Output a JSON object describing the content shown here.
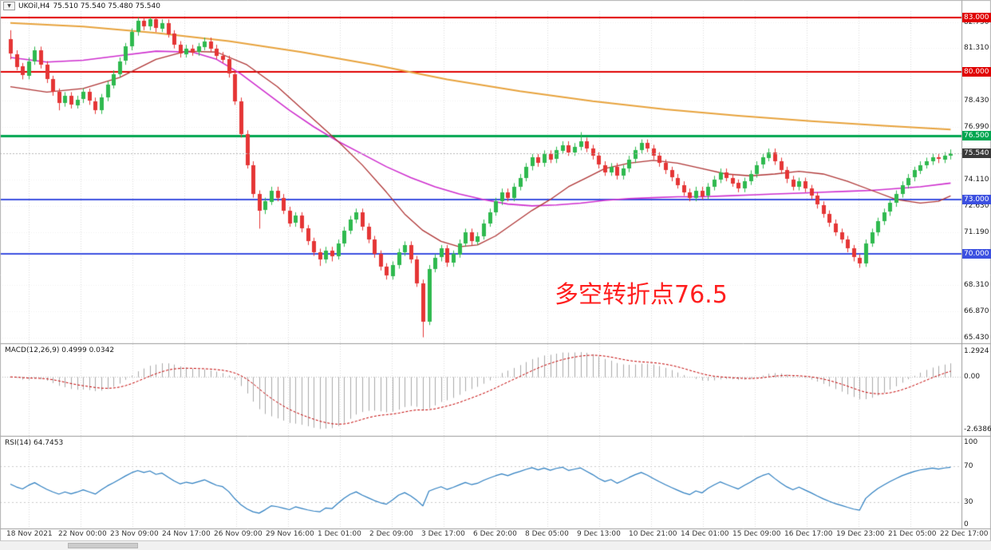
{
  "symbol_bar": {
    "dropdown_icon": "▼",
    "label": "UKOil,H4",
    "ohlc": "75.510 75.540 75.480 75.540"
  },
  "annotation": {
    "text": "多空转折点76.5",
    "color": "#ff1f1f"
  },
  "chart_data": {
    "type": "candlestick",
    "symbol": "UKOil",
    "timeframe": "H4",
    "current_ohlc": {
      "open": "75.510",
      "high": "75.540",
      "low": "75.480",
      "close": "75.540"
    },
    "price_ticks": [
      "82.750",
      "81.310",
      "78.430",
      "76.990",
      "74.110",
      "72.630",
      "71.190",
      "68.310",
      "66.870",
      "65.430"
    ],
    "time_labels": [
      "18 Nov 2021",
      "22 Nov 00:00",
      "23 Nov 09:00",
      "24 Nov 17:00",
      "26 Nov 09:00",
      "29 Nov 16:00",
      "1 Dec 01:00",
      "2 Dec 09:00",
      "3 Dec 17:00",
      "6 Dec 20:00",
      "8 Dec 05:00",
      "9 Dec 13:00",
      "10 Dec 21:00",
      "14 Dec 01:00",
      "15 Dec 09:00",
      "16 Dec 17:00",
      "19 Dec 23:00",
      "21 Dec 05:00",
      "22 Dec 17:00"
    ],
    "horizontal_lines": [
      {
        "label": "83.000",
        "price": 83.0,
        "color": "#e00000",
        "width": 2
      },
      {
        "label": "80.000",
        "price": 80.0,
        "color": "#e00000",
        "width": 2
      },
      {
        "label": "76.500",
        "price": 76.5,
        "color": "#00a650",
        "width": 3
      },
      {
        "label": "73.000",
        "price": 73.0,
        "color": "#3c50e0",
        "width": 2
      },
      {
        "label": "70.000",
        "price": 70.0,
        "color": "#3c50e0",
        "width": 2
      }
    ],
    "current_price": {
      "value": 75.54,
      "label": "75.540",
      "badge_color": "#3a3a3a",
      "line_color": "#b8b8b8"
    },
    "candle_colors": {
      "up": "#2eb94e",
      "down": "#e53535"
    },
    "candles": [
      [
        81.8,
        82.3,
        80.7,
        81.0
      ],
      [
        81.0,
        81.2,
        80.1,
        80.3
      ],
      [
        80.3,
        80.5,
        79.6,
        79.8
      ],
      [
        79.8,
        80.8,
        79.6,
        80.6
      ],
      [
        80.6,
        81.4,
        80.4,
        81.2
      ],
      [
        81.2,
        81.4,
        80.2,
        80.4
      ],
      [
        80.4,
        80.6,
        79.4,
        79.6
      ],
      [
        79.6,
        79.8,
        78.7,
        78.9
      ],
      [
        78.9,
        79.1,
        77.9,
        78.3
      ],
      [
        78.3,
        78.9,
        78.1,
        78.7
      ],
      [
        78.7,
        78.9,
        78.0,
        78.2
      ],
      [
        78.2,
        78.7,
        78.0,
        78.5
      ],
      [
        78.5,
        79.1,
        78.3,
        78.9
      ],
      [
        78.9,
        79.1,
        78.2,
        78.4
      ],
      [
        78.4,
        78.6,
        77.7,
        77.9
      ],
      [
        77.9,
        78.8,
        77.7,
        78.6
      ],
      [
        78.6,
        79.5,
        78.4,
        79.3
      ],
      [
        79.3,
        80.1,
        79.1,
        79.9
      ],
      [
        79.9,
        80.8,
        79.7,
        80.6
      ],
      [
        80.6,
        81.6,
        80.4,
        81.4
      ],
      [
        81.4,
        82.4,
        81.2,
        82.2
      ],
      [
        82.2,
        83.0,
        82.0,
        82.8
      ],
      [
        82.8,
        83.0,
        82.3,
        82.5
      ],
      [
        82.5,
        83.0,
        82.3,
        82.9
      ],
      [
        82.9,
        83.0,
        82.2,
        82.4
      ],
      [
        82.4,
        82.9,
        82.2,
        82.7
      ],
      [
        82.7,
        82.9,
        81.9,
        82.1
      ],
      [
        82.1,
        82.3,
        81.3,
        81.5
      ],
      [
        81.5,
        81.7,
        80.8,
        81.0
      ],
      [
        81.0,
        81.5,
        80.8,
        81.3
      ],
      [
        81.3,
        81.5,
        80.9,
        81.1
      ],
      [
        81.1,
        81.6,
        80.9,
        81.4
      ],
      [
        81.4,
        81.9,
        81.2,
        81.7
      ],
      [
        81.7,
        81.9,
        81.1,
        81.3
      ],
      [
        81.3,
        81.5,
        80.7,
        80.9
      ],
      [
        80.9,
        81.1,
        80.5,
        80.7
      ],
      [
        80.7,
        80.9,
        79.7,
        79.9
      ],
      [
        79.9,
        80.1,
        78.2,
        78.4
      ],
      [
        78.4,
        78.6,
        76.4,
        76.6
      ],
      [
        76.6,
        76.8,
        74.7,
        74.9
      ],
      [
        74.9,
        75.1,
        73.1,
        73.3
      ],
      [
        73.3,
        73.5,
        71.4,
        72.4
      ],
      [
        72.4,
        73.1,
        72.2,
        72.9
      ],
      [
        72.9,
        73.7,
        72.7,
        73.5
      ],
      [
        73.5,
        73.7,
        72.9,
        73.1
      ],
      [
        73.1,
        73.3,
        72.2,
        72.4
      ],
      [
        72.4,
        72.6,
        71.5,
        71.7
      ],
      [
        71.7,
        72.3,
        71.5,
        72.1
      ],
      [
        72.1,
        72.3,
        71.2,
        71.4
      ],
      [
        71.4,
        71.6,
        70.5,
        70.7
      ],
      [
        70.7,
        70.9,
        69.9,
        70.1
      ],
      [
        70.1,
        70.3,
        69.35,
        69.7
      ],
      [
        69.7,
        70.4,
        69.5,
        70.2
      ],
      [
        70.2,
        70.4,
        69.6,
        69.9
      ],
      [
        69.9,
        70.8,
        69.7,
        70.6
      ],
      [
        70.6,
        71.5,
        70.4,
        71.3
      ],
      [
        71.3,
        72.1,
        71.1,
        71.9
      ],
      [
        71.9,
        72.5,
        71.7,
        72.3
      ],
      [
        72.3,
        72.5,
        71.3,
        71.5
      ],
      [
        71.5,
        71.7,
        70.6,
        70.8
      ],
      [
        70.8,
        71.0,
        69.8,
        70.0
      ],
      [
        70.0,
        70.2,
        69.1,
        69.3
      ],
      [
        69.3,
        69.5,
        68.6,
        68.8
      ],
      [
        68.8,
        69.6,
        68.6,
        69.4
      ],
      [
        69.4,
        70.3,
        69.2,
        70.1
      ],
      [
        70.1,
        70.7,
        69.9,
        70.5
      ],
      [
        70.5,
        70.7,
        69.5,
        69.7
      ],
      [
        69.7,
        69.9,
        68.2,
        68.4
      ],
      [
        68.4,
        68.6,
        65.43,
        66.3
      ],
      [
        66.3,
        69.4,
        66.1,
        69.2
      ],
      [
        69.2,
        70.0,
        69.0,
        69.8
      ],
      [
        69.8,
        70.5,
        69.6,
        70.3
      ],
      [
        70.3,
        70.5,
        69.3,
        69.5
      ],
      [
        69.5,
        70.2,
        69.3,
        70.0
      ],
      [
        70.0,
        70.8,
        69.8,
        70.6
      ],
      [
        70.6,
        71.4,
        70.4,
        71.2
      ],
      [
        71.2,
        71.4,
        70.5,
        70.7
      ],
      [
        70.7,
        71.2,
        70.5,
        71.0
      ],
      [
        71.0,
        71.9,
        70.8,
        71.7
      ],
      [
        71.7,
        72.5,
        71.5,
        72.3
      ],
      [
        72.3,
        73.1,
        72.1,
        72.9
      ],
      [
        72.9,
        73.6,
        72.7,
        73.4
      ],
      [
        73.4,
        73.6,
        72.9,
        73.1
      ],
      [
        73.1,
        73.9,
        72.9,
        73.7
      ],
      [
        73.7,
        74.4,
        73.5,
        74.2
      ],
      [
        74.2,
        75.0,
        74.0,
        74.8
      ],
      [
        74.8,
        75.5,
        74.6,
        75.3
      ],
      [
        75.3,
        75.5,
        74.8,
        75.0
      ],
      [
        75.0,
        75.7,
        74.8,
        75.5
      ],
      [
        75.5,
        75.7,
        75.0,
        75.2
      ],
      [
        75.2,
        75.9,
        75.0,
        75.7
      ],
      [
        75.7,
        76.2,
        75.5,
        76.0
      ],
      [
        76.0,
        76.2,
        75.4,
        75.6
      ],
      [
        75.6,
        76.1,
        75.4,
        75.9
      ],
      [
        75.9,
        76.7,
        75.7,
        76.2
      ],
      [
        76.2,
        76.4,
        75.6,
        75.8
      ],
      [
        75.8,
        76.0,
        75.2,
        75.4
      ],
      [
        75.4,
        75.6,
        74.7,
        74.9
      ],
      [
        74.9,
        75.1,
        74.3,
        74.5
      ],
      [
        74.5,
        75.0,
        74.3,
        74.8
      ],
      [
        74.8,
        75.0,
        74.1,
        74.3
      ],
      [
        74.3,
        74.9,
        74.1,
        74.7
      ],
      [
        74.7,
        75.4,
        74.5,
        75.2
      ],
      [
        75.2,
        75.9,
        75.0,
        75.7
      ],
      [
        75.7,
        76.3,
        75.5,
        76.1
      ],
      [
        76.1,
        76.3,
        75.6,
        75.8
      ],
      [
        75.8,
        76.0,
        75.2,
        75.4
      ],
      [
        75.4,
        75.6,
        74.8,
        75.0
      ],
      [
        75.0,
        75.2,
        74.4,
        74.6
      ],
      [
        74.6,
        74.8,
        74.0,
        74.2
      ],
      [
        74.2,
        74.4,
        73.6,
        73.8
      ],
      [
        73.8,
        74.0,
        73.2,
        73.4
      ],
      [
        73.4,
        73.6,
        72.9,
        73.1
      ],
      [
        73.1,
        73.7,
        72.9,
        73.5
      ],
      [
        73.5,
        73.7,
        73.0,
        73.2
      ],
      [
        73.2,
        73.9,
        73.0,
        73.7
      ],
      [
        73.7,
        74.3,
        73.5,
        74.1
      ],
      [
        74.1,
        74.7,
        73.9,
        74.5
      ],
      [
        74.5,
        74.7,
        74.0,
        74.2
      ],
      [
        74.2,
        74.4,
        73.7,
        73.9
      ],
      [
        73.9,
        74.1,
        73.4,
        73.6
      ],
      [
        73.6,
        74.2,
        73.4,
        74.0
      ],
      [
        74.0,
        74.6,
        73.8,
        74.4
      ],
      [
        74.4,
        75.1,
        74.2,
        74.9
      ],
      [
        74.9,
        75.5,
        74.7,
        75.3
      ],
      [
        75.3,
        75.8,
        75.1,
        75.6
      ],
      [
        75.6,
        75.8,
        74.9,
        75.1
      ],
      [
        75.1,
        75.3,
        74.4,
        74.6
      ],
      [
        74.6,
        74.8,
        73.9,
        74.1
      ],
      [
        74.1,
        74.3,
        73.5,
        73.7
      ],
      [
        73.7,
        74.2,
        73.5,
        74.0
      ],
      [
        74.0,
        74.2,
        73.4,
        73.6
      ],
      [
        73.6,
        73.8,
        73.0,
        73.2
      ],
      [
        73.2,
        73.4,
        72.5,
        72.7
      ],
      [
        72.7,
        72.9,
        72.0,
        72.2
      ],
      [
        72.2,
        72.4,
        71.5,
        71.7
      ],
      [
        71.7,
        71.9,
        71.0,
        71.2
      ],
      [
        71.2,
        71.4,
        70.6,
        70.8
      ],
      [
        70.8,
        71.0,
        70.1,
        70.3
      ],
      [
        70.3,
        70.5,
        69.6,
        69.8
      ],
      [
        69.8,
        70.0,
        69.25,
        69.5
      ],
      [
        69.5,
        70.8,
        69.3,
        70.6
      ],
      [
        70.6,
        71.4,
        70.4,
        71.2
      ],
      [
        71.2,
        72.0,
        71.0,
        71.8
      ],
      [
        71.8,
        72.5,
        71.6,
        72.3
      ],
      [
        72.3,
        73.0,
        72.1,
        72.8
      ],
      [
        72.8,
        73.5,
        72.6,
        73.3
      ],
      [
        73.3,
        74.0,
        73.1,
        73.8
      ],
      [
        73.8,
        74.4,
        73.6,
        74.2
      ],
      [
        74.2,
        74.8,
        74.0,
        74.6
      ],
      [
        74.6,
        75.1,
        74.4,
        74.9
      ],
      [
        74.9,
        75.3,
        74.7,
        75.1
      ],
      [
        75.1,
        75.5,
        74.9,
        75.3
      ],
      [
        75.3,
        75.5,
        75.0,
        75.2
      ],
      [
        75.2,
        75.6,
        75.0,
        75.4
      ],
      [
        75.4,
        75.75,
        75.2,
        75.54
      ]
    ],
    "moving_averages": [
      {
        "name": "ma-long",
        "color": "#e8a33d",
        "width": 2,
        "points": [
          [
            0,
            82.7
          ],
          [
            12,
            82.5
          ],
          [
            24,
            82.15
          ],
          [
            36,
            81.7
          ],
          [
            48,
            81.1
          ],
          [
            60,
            80.4
          ],
          [
            72,
            79.6
          ],
          [
            84,
            78.95
          ],
          [
            96,
            78.4
          ],
          [
            108,
            77.95
          ],
          [
            120,
            77.6
          ],
          [
            132,
            77.3
          ],
          [
            144,
            77.05
          ],
          [
            155,
            76.85
          ]
        ]
      },
      {
        "name": "ma-mid",
        "color": "#cf2fcf",
        "width": 1.6,
        "points": [
          [
            0,
            80.8
          ],
          [
            6,
            80.55
          ],
          [
            12,
            80.65
          ],
          [
            18,
            80.9
          ],
          [
            24,
            81.15
          ],
          [
            30,
            81.1
          ],
          [
            34,
            80.7
          ],
          [
            38,
            79.9
          ],
          [
            42,
            78.9
          ],
          [
            46,
            77.9
          ],
          [
            50,
            77.0
          ],
          [
            54,
            76.2
          ],
          [
            58,
            75.5
          ],
          [
            62,
            74.8
          ],
          [
            66,
            74.2
          ],
          [
            70,
            73.7
          ],
          [
            74,
            73.3
          ],
          [
            78,
            73.0
          ],
          [
            82,
            72.75
          ],
          [
            86,
            72.65
          ],
          [
            90,
            72.7
          ],
          [
            94,
            72.8
          ],
          [
            98,
            72.95
          ],
          [
            102,
            73.05
          ],
          [
            106,
            73.1
          ],
          [
            110,
            73.15
          ],
          [
            114,
            73.15
          ],
          [
            118,
            73.2
          ],
          [
            122,
            73.25
          ],
          [
            126,
            73.3
          ],
          [
            130,
            73.35
          ],
          [
            134,
            73.4
          ],
          [
            138,
            73.45
          ],
          [
            142,
            73.5
          ],
          [
            146,
            73.6
          ],
          [
            150,
            73.7
          ],
          [
            155,
            73.9
          ]
        ]
      },
      {
        "name": "ma-fast",
        "color": "#b03636",
        "width": 1.3,
        "points": [
          [
            0,
            79.2
          ],
          [
            6,
            78.9
          ],
          [
            12,
            79.1
          ],
          [
            18,
            79.7
          ],
          [
            24,
            80.7
          ],
          [
            29,
            81.15
          ],
          [
            34,
            81.1
          ],
          [
            39,
            80.4
          ],
          [
            44,
            79.2
          ],
          [
            49,
            77.7
          ],
          [
            54,
            76.2
          ],
          [
            58,
            74.9
          ],
          [
            62,
            73.4
          ],
          [
            65,
            72.2
          ],
          [
            68,
            71.3
          ],
          [
            71,
            70.7
          ],
          [
            74,
            70.4
          ],
          [
            77,
            70.5
          ],
          [
            80,
            71.0
          ],
          [
            83,
            71.7
          ],
          [
            86,
            72.4
          ],
          [
            89,
            73.0
          ],
          [
            92,
            73.7
          ],
          [
            95,
            74.2
          ],
          [
            98,
            74.7
          ],
          [
            102,
            75.0
          ],
          [
            106,
            75.15
          ],
          [
            110,
            75.0
          ],
          [
            114,
            74.7
          ],
          [
            118,
            74.4
          ],
          [
            122,
            74.3
          ],
          [
            126,
            74.4
          ],
          [
            130,
            74.55
          ],
          [
            134,
            74.4
          ],
          [
            138,
            74.0
          ],
          [
            142,
            73.5
          ],
          [
            146,
            73.0
          ],
          [
            150,
            72.8
          ],
          [
            153,
            72.9
          ],
          [
            155,
            73.2
          ]
        ]
      }
    ],
    "indicators": {
      "macd": {
        "label": "MACD(12,26,9) 0.4999 0.0342",
        "fast": 12,
        "slow": 26,
        "signal": 9,
        "current_main": 0.4999,
        "current_signal": 0.0342,
        "axis_ticks": [
          "1.2924",
          "0.00",
          "-2.6386"
        ],
        "color_histogram": "#a9a9a9",
        "color_signal": "#c40000"
      },
      "rsi": {
        "label": "RSI(14) 64.7453",
        "period": 14,
        "current": 64.7453,
        "axis_ticks": [
          "100",
          "70",
          "30",
          "0"
        ],
        "levels": [
          70,
          30
        ],
        "color": "#2e7fc1"
      }
    }
  }
}
